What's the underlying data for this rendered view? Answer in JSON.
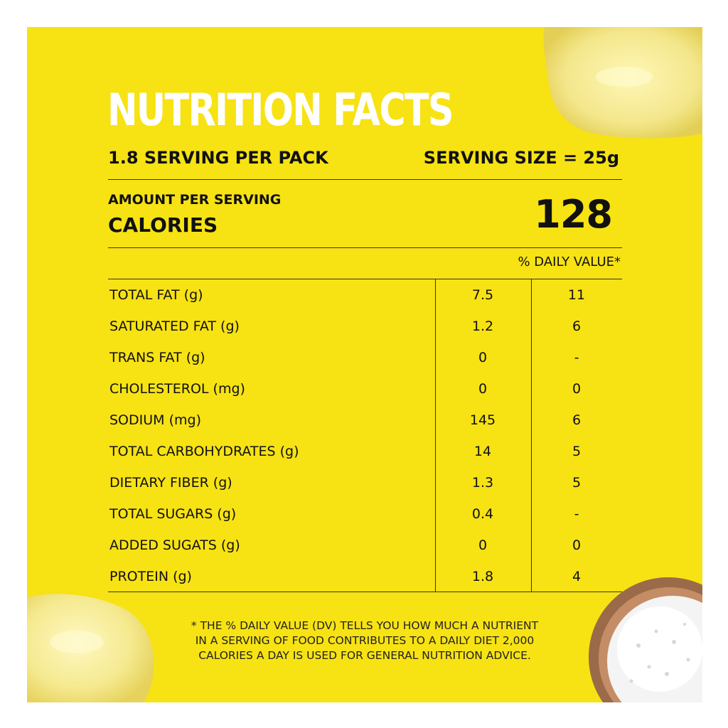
{
  "title": "NUTRITION FACTS",
  "servings_per_pack": "1.8 SERVING PER PACK",
  "serving_size": "SERVING SIZE = 25g",
  "amount_per_serving": "AMOUNT PER SERVING",
  "calories_label": "CALORIES",
  "calories_value": "128",
  "daily_value_header": "% DAILY VALUE*",
  "rows": [
    {
      "name": "TOTAL FAT (g)",
      "amount": "7.5",
      "dv": "11"
    },
    {
      "name": "SATURATED FAT (g)",
      "amount": "1.2",
      "dv": "6"
    },
    {
      "name": "TRANS FAT (g)",
      "amount": "0",
      "dv": "-"
    },
    {
      "name": "CHOLESTEROL (mg)",
      "amount": "0",
      "dv": "0"
    },
    {
      "name": "SODIUM (mg)",
      "amount": "145",
      "dv": "6"
    },
    {
      "name": "TOTAL CARBOHYDRATES (g)",
      "amount": "14",
      "dv": "5"
    },
    {
      "name": "DIETARY FIBER (g)",
      "amount": "1.3",
      "dv": "5"
    },
    {
      "name": "TOTAL SUGARS (g)",
      "amount": "0.4",
      "dv": "-"
    },
    {
      "name": "ADDED SUGATS (g)",
      "amount": "0",
      "dv": "0"
    },
    {
      "name": "PROTEIN (g)",
      "amount": "1.8",
      "dv": "4"
    }
  ],
  "footnote": [
    "* THE % DAILY VALUE (DV) TELLS YOU HOW MUCH A NUTRIENT",
    "IN A SERVING OF FOOD CONTRIBUTES TO A DAILY DIET 2,000",
    "CALORIES A DAY IS USED FOR GENERAL NUTRITION ADVICE."
  ],
  "colors": {
    "background": "#f7e214",
    "title": "#ffffff",
    "text": "#111111"
  },
  "decorations": [
    "potato-chip-image",
    "potato-chip-image",
    "salt-bowl-image"
  ]
}
